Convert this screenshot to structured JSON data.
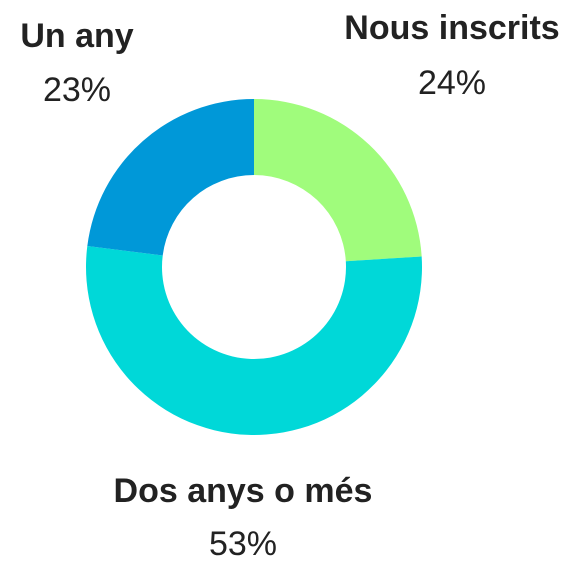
{
  "chart_data": {
    "type": "donut",
    "categories": [
      "Nous inscrits",
      "Dos anys o més",
      "Un any"
    ],
    "values": [
      24,
      53,
      23
    ],
    "value_labels": [
      "24%",
      "53%",
      "23%"
    ],
    "colors": [
      "#a0fc7c",
      "#00d8d8",
      "#0098d8"
    ]
  }
}
